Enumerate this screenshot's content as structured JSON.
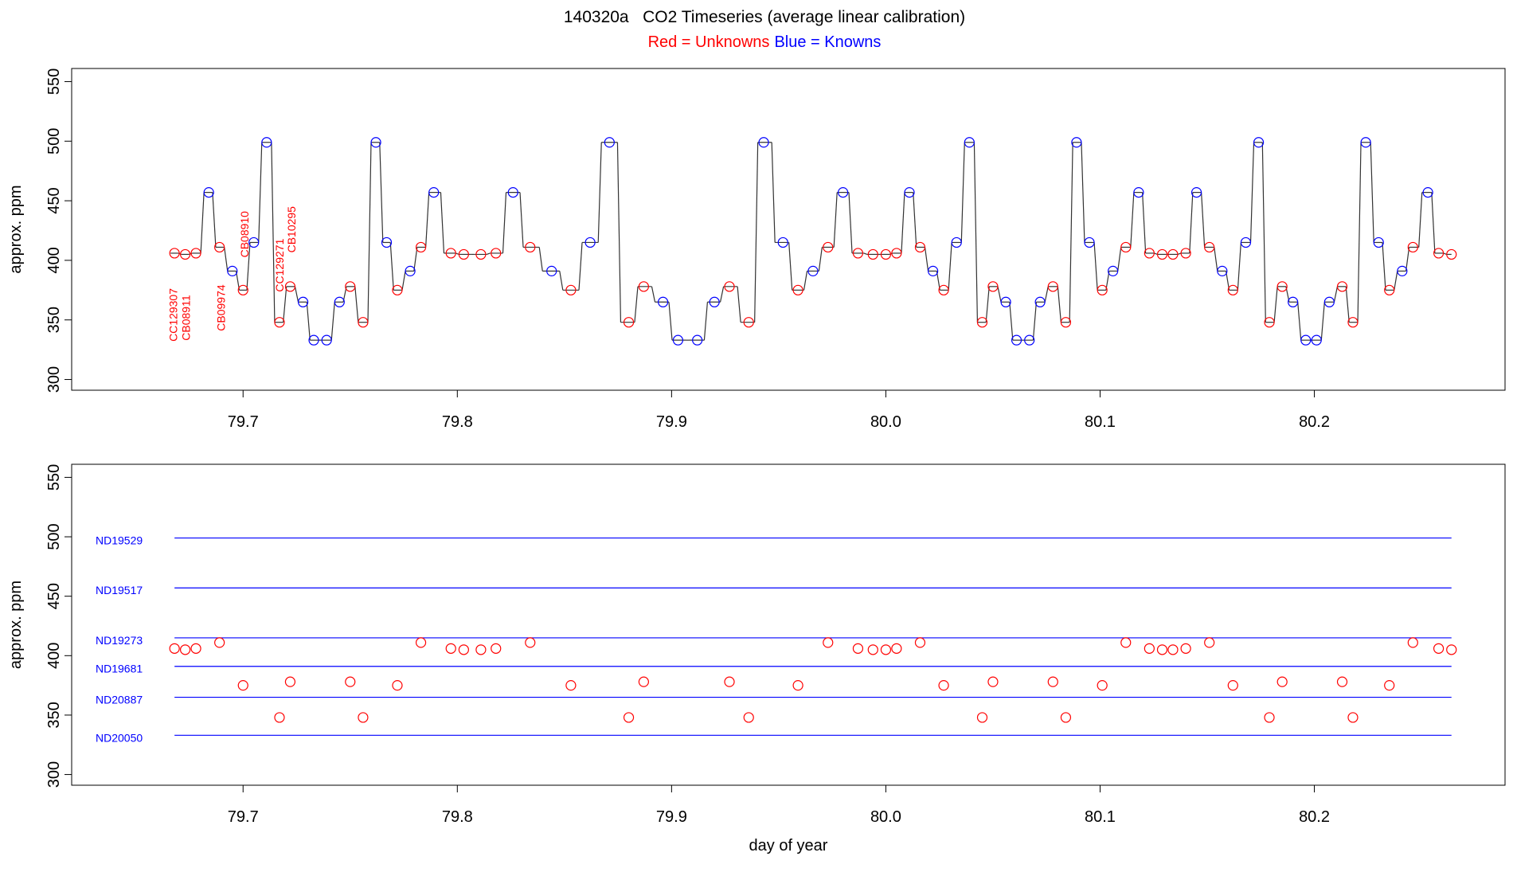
{
  "chart_data": [
    {
      "type": "line",
      "title": "140320a   CO2 Timeseries (average linear calibration)",
      "subtitle": [
        "Red = Unknowns",
        "Blue = Knowns"
      ],
      "subtitle_colors": [
        "#ff0000",
        "#0000ff"
      ],
      "ylabel": "approx. ppm",
      "xlim": [
        79.62,
        80.289
      ],
      "ylim": [
        291,
        561
      ],
      "xticks": [
        79.7,
        79.8,
        79.9,
        {
          "value": 80,
          "label": "80.0"
        },
        80.1,
        80.2
      ],
      "yticks": [
        300,
        350,
        400,
        450,
        500,
        550
      ],
      "trace": {
        "color": "#333333",
        "x": [
          79.668,
          79.673,
          79.678,
          79.684,
          79.689,
          79.695,
          79.7,
          79.705,
          79.711,
          79.717,
          79.722,
          79.728,
          79.733,
          79.739,
          79.745,
          79.75,
          79.756,
          79.762,
          79.767,
          79.772,
          79.778,
          79.783,
          79.789,
          79.797,
          79.803,
          79.811,
          79.818,
          79.826,
          79.834,
          79.844,
          79.853,
          79.862,
          79.871,
          79.88,
          79.887,
          79.896,
          79.903,
          79.912,
          79.92,
          79.927,
          79.936,
          79.943,
          79.952,
          79.959,
          79.966,
          79.973,
          79.98,
          79.987,
          79.994,
          80.0,
          80.005,
          80.011,
          80.016,
          80.022,
          80.027,
          80.033,
          80.039,
          80.045,
          80.05,
          80.056,
          80.061,
          80.067,
          80.072,
          80.078,
          80.084,
          80.089,
          80.095,
          80.101,
          80.106,
          80.112,
          80.118,
          80.123,
          80.129,
          80.134,
          80.14,
          80.145,
          80.151,
          80.157,
          80.162,
          80.168,
          80.174,
          80.179,
          80.185,
          80.19,
          80.196,
          80.201,
          80.207,
          80.213,
          80.218,
          80.224,
          80.23,
          80.235,
          80.241,
          80.246,
          80.253,
          80.258,
          80.264
        ],
        "values": [
          406,
          405,
          406,
          457,
          411,
          391,
          375,
          415,
          499,
          348,
          378,
          365,
          333,
          333,
          365,
          378,
          348,
          499,
          415,
          375,
          391,
          411,
          457,
          406,
          405,
          405,
          406,
          457,
          411,
          391,
          375,
          415,
          499,
          348,
          378,
          365,
          333,
          333,
          365,
          378,
          348,
          499,
          415,
          375,
          391,
          411,
          457,
          406,
          405,
          405,
          406,
          457,
          411,
          391,
          375,
          415,
          499,
          348,
          378,
          365,
          333,
          333,
          365,
          378,
          348,
          499,
          415,
          375,
          391,
          411,
          457,
          406,
          405,
          405,
          406,
          457,
          411,
          391,
          375,
          415,
          499,
          348,
          378,
          365,
          333,
          333,
          365,
          378,
          348,
          499,
          415,
          375,
          391,
          411,
          457,
          406,
          405
        ]
      },
      "series": [
        {
          "color": "#ff0000",
          "x": [
            79.668,
            79.673,
            79.678,
            79.689,
            79.7,
            79.717,
            79.722,
            79.75,
            79.756,
            79.772,
            79.783,
            79.797,
            79.803,
            79.811,
            79.818,
            79.834,
            79.853,
            79.88,
            79.887,
            79.927,
            79.936,
            79.959,
            79.973,
            79.987,
            79.994,
            80.0,
            80.005,
            80.016,
            80.027,
            80.045,
            80.05,
            80.078,
            80.084,
            80.101,
            80.112,
            80.123,
            80.129,
            80.134,
            80.14,
            80.151,
            80.162,
            80.179,
            80.185,
            80.213,
            80.218,
            80.235,
            80.246,
            80.258,
            80.264
          ],
          "values": [
            406,
            405,
            406,
            411,
            375,
            348,
            378,
            378,
            348,
            375,
            411,
            406,
            405,
            405,
            406,
            411,
            375,
            348,
            378,
            378,
            348,
            375,
            411,
            406,
            405,
            405,
            406,
            411,
            375,
            348,
            378,
            378,
            348,
            375,
            411,
            406,
            405,
            405,
            406,
            411,
            375,
            348,
            378,
            378,
            348,
            375,
            411,
            406,
            405
          ]
        },
        {
          "color": "#0000ff",
          "x": [
            79.684,
            79.695,
            79.705,
            79.711,
            79.728,
            79.733,
            79.739,
            79.745,
            79.762,
            79.767,
            79.778,
            79.789,
            79.826,
            79.844,
            79.862,
            79.871,
            79.896,
            79.903,
            79.912,
            79.92,
            79.943,
            79.952,
            79.966,
            79.98,
            80.011,
            80.022,
            80.033,
            80.039,
            80.056,
            80.061,
            80.067,
            80.072,
            80.089,
            80.095,
            80.106,
            80.118,
            80.145,
            80.157,
            80.168,
            80.174,
            80.19,
            80.196,
            80.201,
            80.207,
            80.224,
            80.23,
            80.241,
            80.253
          ],
          "values": [
            457,
            391,
            415,
            499,
            365,
            333,
            333,
            365,
            499,
            415,
            391,
            457,
            457,
            391,
            415,
            499,
            365,
            333,
            333,
            365,
            499,
            415,
            391,
            457,
            457,
            391,
            415,
            499,
            365,
            333,
            333,
            365,
            499,
            415,
            391,
            457,
            457,
            391,
            415,
            499,
            365,
            333,
            333,
            365,
            499,
            415,
            391,
            457
          ]
        }
      ],
      "annotations": [
        "CC129307",
        "CB08911",
        "CB09974",
        "CB08910",
        "CC129271",
        "CB10295"
      ]
    },
    {
      "type": "scatter",
      "ylabel": "approx. ppm",
      "xlabel": "day of year",
      "xlim": [
        79.62,
        80.289
      ],
      "ylim": [
        291,
        561
      ],
      "xticks": [
        79.7,
        79.8,
        79.9,
        {
          "value": 80,
          "label": "80.0"
        },
        80.1,
        80.2
      ],
      "yticks": [
        300,
        350,
        400,
        450,
        500,
        550
      ],
      "lines": [
        {
          "name": "ND19529",
          "color": "#0000ff",
          "x": [
            79.668,
            80.264
          ],
          "values": [
            499,
            499
          ]
        },
        {
          "name": "ND19517",
          "color": "#0000ff",
          "x": [
            79.668,
            80.264
          ],
          "values": [
            457,
            457
          ]
        },
        {
          "name": "ND19273",
          "color": "#0000ff",
          "x": [
            79.668,
            80.264
          ],
          "values": [
            415,
            415
          ]
        },
        {
          "name": "ND19681",
          "color": "#0000ff",
          "x": [
            79.668,
            80.264
          ],
          "values": [
            391,
            391
          ]
        },
        {
          "name": "ND20887",
          "color": "#0000ff",
          "x": [
            79.668,
            80.264
          ],
          "values": [
            365,
            365
          ]
        },
        {
          "name": "ND20050",
          "color": "#0000ff",
          "x": [
            79.668,
            80.264
          ],
          "values": [
            333,
            333
          ]
        }
      ],
      "points": {
        "color": "#ff0000",
        "x": [
          79.668,
          79.673,
          79.678,
          79.689,
          79.7,
          79.717,
          79.722,
          79.75,
          79.756,
          79.772,
          79.783,
          79.797,
          79.803,
          79.811,
          79.818,
          79.834,
          79.853,
          79.88,
          79.887,
          79.927,
          79.936,
          79.959,
          79.973,
          79.987,
          79.994,
          80.0,
          80.005,
          80.016,
          80.027,
          80.045,
          80.05,
          80.078,
          80.084,
          80.101,
          80.112,
          80.123,
          80.129,
          80.134,
          80.14,
          80.151,
          80.162,
          80.179,
          80.185,
          80.213,
          80.218,
          80.235,
          80.246,
          80.258,
          80.264
        ],
        "values": [
          406,
          405,
          406,
          411,
          375,
          348,
          378,
          378,
          348,
          375,
          411,
          406,
          405,
          405,
          406,
          411,
          375,
          348,
          378,
          378,
          348,
          375,
          411,
          406,
          405,
          405,
          406,
          411,
          375,
          348,
          378,
          378,
          348,
          375,
          411,
          406,
          405,
          405,
          406,
          411,
          375,
          348,
          378,
          378,
          348,
          375,
          411,
          406,
          405
        ]
      }
    }
  ]
}
